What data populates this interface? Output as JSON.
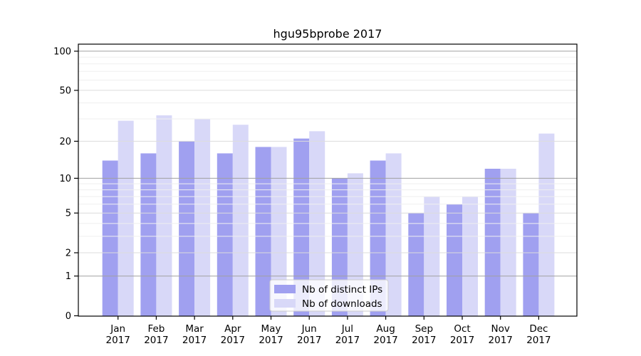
{
  "chart_data": {
    "type": "bar",
    "title": "hgu95bprobe 2017",
    "categories": [
      "Jan",
      "Feb",
      "Mar",
      "Apr",
      "May",
      "Jun",
      "Jul",
      "Aug",
      "Sep",
      "Oct",
      "Nov",
      "Dec"
    ],
    "category_year": "2017",
    "series": [
      {
        "name": "Nb of distinct IPs",
        "color": "#a0a0f0",
        "values": [
          14,
          16,
          20,
          16,
          18,
          21,
          10,
          14,
          5,
          6,
          12,
          5
        ]
      },
      {
        "name": "Nb of downloads",
        "color": "#d8d8f8",
        "values": [
          29,
          32,
          30,
          27,
          18,
          24,
          11,
          16,
          7,
          7,
          12,
          23
        ]
      }
    ],
    "yscale": "log10(1+x)",
    "yticks": [
      0,
      1,
      2,
      5,
      10,
      20,
      50,
      100
    ],
    "minor_yticks": [
      3,
      4,
      6,
      7,
      8,
      9,
      30,
      40,
      60,
      70,
      80,
      90
    ],
    "ylim": [
      0,
      113
    ],
    "xlabel": "",
    "ylabel": "",
    "grid": true,
    "legend_position": "inside lower center",
    "legend_entries": [
      "Nb of distinct IPs",
      "Nb of downloads"
    ],
    "grid_colors": {
      "power_of_ten": "#a0a0a0",
      "major": "#dcdcdc",
      "minor": "#efefef"
    },
    "axis_color": "#000000",
    "background_color": "#ffffff"
  }
}
